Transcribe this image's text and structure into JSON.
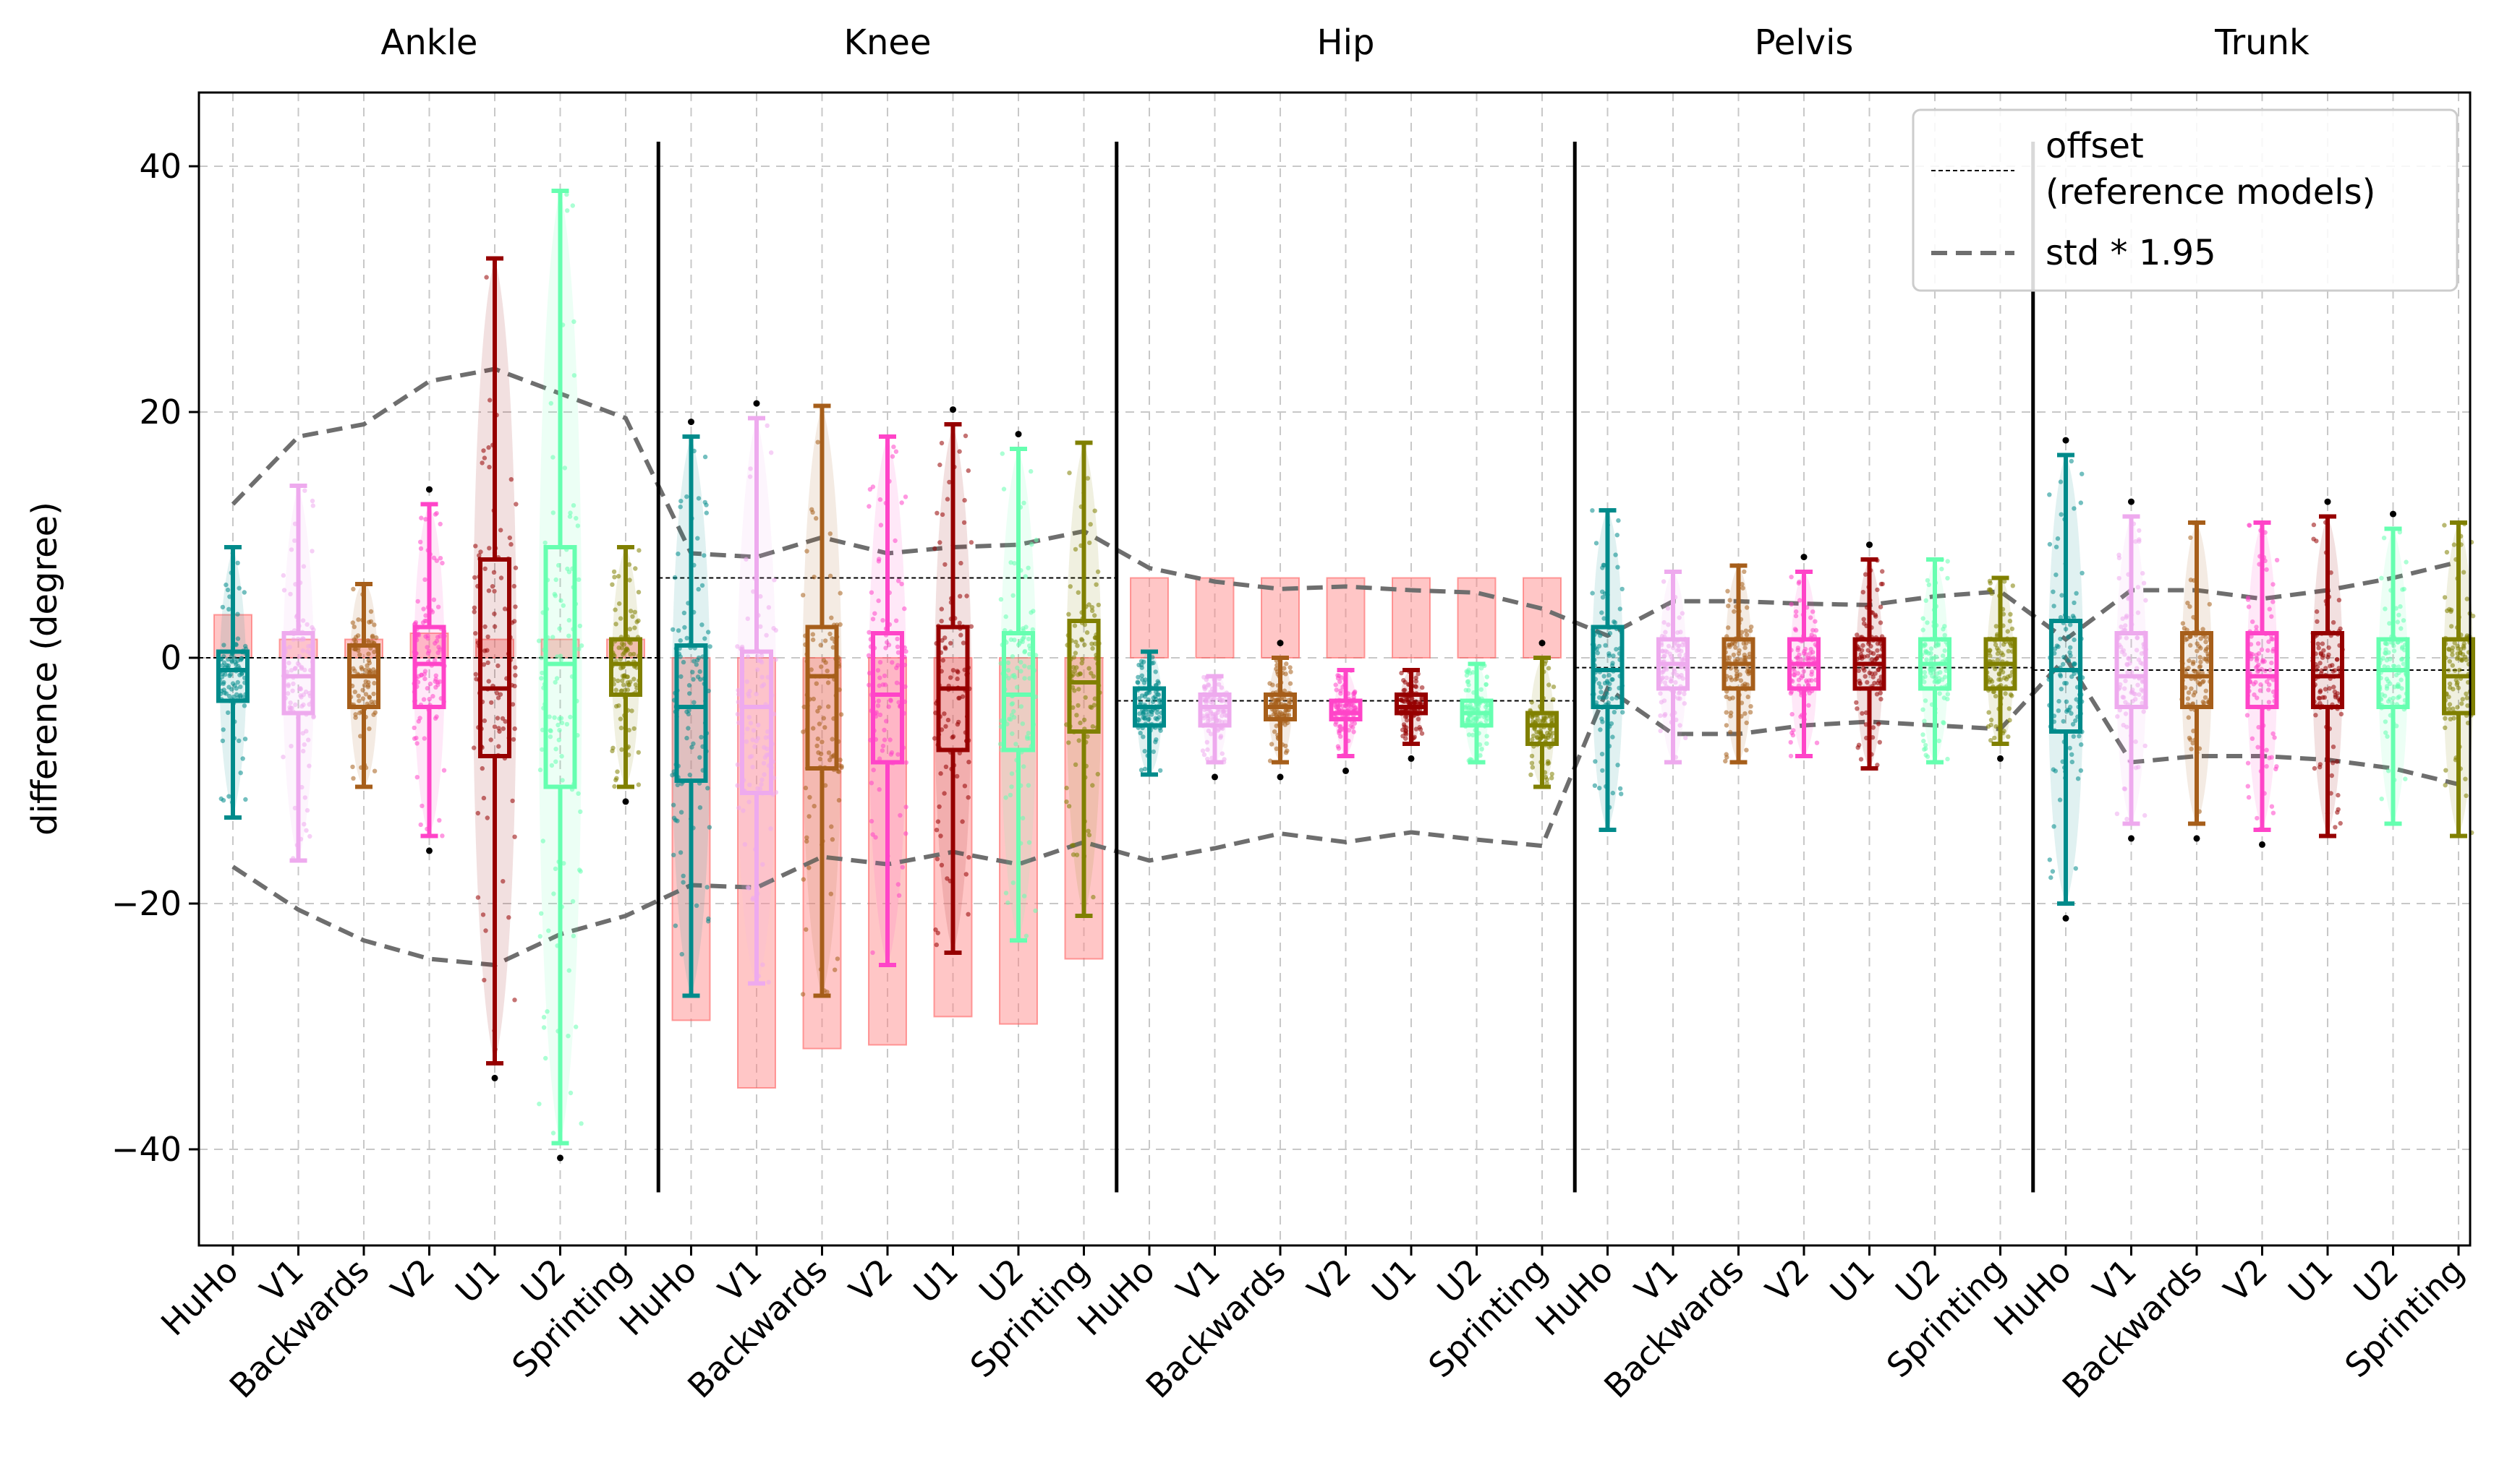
{
  "chart_data": {
    "type": "box",
    "ylabel": "difference (degree)",
    "ylim": [
      -47,
      46
    ],
    "yticks": [
      {
        "value": 40,
        "label": "40"
      },
      {
        "value": 20,
        "label": "20"
      },
      {
        "value": 0,
        "label": "0"
      },
      {
        "value": -20,
        "label": "−20"
      },
      {
        "value": -40,
        "label": "−40"
      }
    ],
    "grid": true,
    "legend": {
      "position": "top-right",
      "entries": [
        {
          "label": "offset",
          "label2": "(reference models)",
          "style": "dotted-thin"
        },
        {
          "label": "std * 1.95",
          "style": "dashed-gray"
        }
      ]
    },
    "model_labels": [
      "HuHo",
      "V1",
      "Backwards",
      "V2",
      "U1",
      "U2",
      "Sprinting"
    ],
    "colors": [
      "#008b8b",
      "#eeaaee",
      "#a65e1a",
      "#ff44c8",
      "#960000",
      "#66ffb0",
      "#808000"
    ],
    "groups": [
      {
        "name": "Ankle",
        "offset": 0,
        "std_upper": [
          12.5,
          18,
          19,
          22.5,
          23.5,
          21.5,
          19.5
        ],
        "std_lower": [
          -17,
          -20.5,
          -23,
          -24.5,
          -25,
          -22.5,
          -21
        ],
        "boxes": [
          {
            "whisker_low": -13,
            "q1": -3.5,
            "median": -1,
            "q3": 0.5,
            "whisker_high": 9,
            "offset_bar": [
              0,
              3.5
            ]
          },
          {
            "whisker_low": -16.5,
            "q1": -4.5,
            "median": -1.5,
            "q3": 2,
            "whisker_high": 14,
            "offset_bar": [
              0,
              1.5
            ]
          },
          {
            "whisker_low": -10.5,
            "q1": -4,
            "median": -1.5,
            "q3": 1,
            "whisker_high": 6,
            "offset_bar": [
              0,
              1.5
            ]
          },
          {
            "whisker_low": -14.5,
            "q1": -4,
            "median": -0.5,
            "q3": 2.5,
            "whisker_high": 12.5,
            "offset_bar": [
              0,
              2
            ]
          },
          {
            "whisker_low": -33,
            "q1": -8,
            "median": -2.5,
            "q3": 8,
            "whisker_high": 32.5,
            "offset_bar": [
              0,
              1.5
            ]
          },
          {
            "whisker_low": -39.5,
            "q1": -10.5,
            "median": -0.5,
            "q3": 9,
            "whisker_high": 38,
            "offset_bar": [
              0,
              1.5
            ]
          },
          {
            "whisker_low": -10.5,
            "q1": -3,
            "median": -0.5,
            "q3": 1.5,
            "whisker_high": 9,
            "offset_bar": [
              0,
              1.5
            ]
          }
        ]
      },
      {
        "name": "Knee",
        "offset": 6.5,
        "std_upper": [
          8.5,
          8.2,
          9.8,
          8.5,
          9,
          9.2,
          10.3
        ],
        "std_lower": [
          -18.5,
          -18.7,
          -16.2,
          -16.8,
          -15.8,
          -16.8,
          -15
        ],
        "boxes": [
          {
            "whisker_low": -27.5,
            "q1": -10,
            "median": -4,
            "q3": 1,
            "whisker_high": 18,
            "offset_bar": [
              -29.5,
              0
            ]
          },
          {
            "whisker_low": -26.5,
            "q1": -11,
            "median": -4,
            "q3": 0.5,
            "whisker_high": 19.5,
            "offset_bar": [
              -35,
              0
            ]
          },
          {
            "whisker_low": -27.5,
            "q1": -9,
            "median": -1.5,
            "q3": 2.5,
            "whisker_high": 20.5,
            "offset_bar": [
              -31.8,
              0
            ]
          },
          {
            "whisker_low": -25,
            "q1": -8.5,
            "median": -3,
            "q3": 2,
            "whisker_high": 18,
            "offset_bar": [
              -31.5,
              0
            ]
          },
          {
            "whisker_low": -24,
            "q1": -7.5,
            "median": -2.5,
            "q3": 2.5,
            "whisker_high": 19,
            "offset_bar": [
              -29.2,
              0
            ]
          },
          {
            "whisker_low": -23,
            "q1": -7.5,
            "median": -3,
            "q3": 2,
            "whisker_high": 17,
            "offset_bar": [
              -29.8,
              0
            ]
          },
          {
            "whisker_low": -21,
            "q1": -6,
            "median": -2,
            "q3": 3,
            "whisker_high": 17.5,
            "offset_bar": [
              -24.5,
              0
            ]
          }
        ]
      },
      {
        "name": "Hip",
        "offset": -3.5,
        "std_upper": [
          7.3,
          6.2,
          5.6,
          5.8,
          5.5,
          5.3,
          4
        ],
        "std_lower": [
          -16.5,
          -15.5,
          -14.3,
          -15,
          -14.2,
          -14.8,
          -15.3
        ],
        "boxes": [
          {
            "whisker_low": -9.5,
            "q1": -5.5,
            "median": -4,
            "q3": -2.5,
            "whisker_high": 0.5,
            "offset_bar": [
              0,
              6.5
            ]
          },
          {
            "whisker_low": -8.5,
            "q1": -5.5,
            "median": -4,
            "q3": -3,
            "whisker_high": -1.5,
            "offset_bar": [
              0,
              6.5
            ]
          },
          {
            "whisker_low": -8.5,
            "q1": -5,
            "median": -4,
            "q3": -3,
            "whisker_high": 0,
            "offset_bar": [
              0,
              6.5
            ]
          },
          {
            "whisker_low": -8,
            "q1": -5,
            "median": -4.5,
            "q3": -3.5,
            "whisker_high": -1,
            "offset_bar": [
              0,
              6.5
            ]
          },
          {
            "whisker_low": -7,
            "q1": -4.5,
            "median": -4,
            "q3": -3,
            "whisker_high": -1,
            "offset_bar": [
              0,
              6.5
            ]
          },
          {
            "whisker_low": -8.5,
            "q1": -5.5,
            "median": -4.5,
            "q3": -3.5,
            "whisker_high": -0.5,
            "offset_bar": [
              0,
              6.5
            ]
          },
          {
            "whisker_low": -10.5,
            "q1": -7,
            "median": -5.5,
            "q3": -4.5,
            "whisker_high": 0,
            "offset_bar": [
              0,
              6.5
            ]
          }
        ]
      },
      {
        "name": "Pelvis",
        "offset": -0.8,
        "std_upper": [
          1.8,
          4.6,
          4.6,
          4.4,
          4.3,
          5,
          5.4
        ],
        "std_lower": [
          -2.5,
          -6.2,
          -6.2,
          -5.5,
          -5.2,
          -5.5,
          -5.8
        ],
        "boxes": [
          {
            "whisker_low": -14,
            "q1": -4,
            "median": -1,
            "q3": 2.5,
            "whisker_high": 12,
            "offset_bar": [
              0,
              0
            ]
          },
          {
            "whisker_low": -8.5,
            "q1": -2.5,
            "median": -0.5,
            "q3": 1.5,
            "whisker_high": 7,
            "offset_bar": [
              0,
              0
            ]
          },
          {
            "whisker_low": -8.5,
            "q1": -2.5,
            "median": -0.5,
            "q3": 1.5,
            "whisker_high": 7.5,
            "offset_bar": [
              0,
              0
            ]
          },
          {
            "whisker_low": -8,
            "q1": -2.5,
            "median": -0.5,
            "q3": 1.5,
            "whisker_high": 7,
            "offset_bar": [
              0,
              0
            ]
          },
          {
            "whisker_low": -9,
            "q1": -2.5,
            "median": -0.5,
            "q3": 1.5,
            "whisker_high": 8,
            "offset_bar": [
              0,
              0
            ]
          },
          {
            "whisker_low": -8.5,
            "q1": -2.5,
            "median": -0.5,
            "q3": 1.5,
            "whisker_high": 8,
            "offset_bar": [
              0,
              0
            ]
          },
          {
            "whisker_low": -7,
            "q1": -2.5,
            "median": -0.5,
            "q3": 1.5,
            "whisker_high": 6.5,
            "offset_bar": [
              0,
              0
            ]
          }
        ]
      },
      {
        "name": "Trunk",
        "offset": -1,
        "std_upper": [
          1.5,
          5.5,
          5.5,
          4.8,
          5.5,
          6.5,
          7.8
        ],
        "std_lower": [
          0,
          -8.5,
          -8,
          -8,
          -8.3,
          -9,
          -10.3
        ],
        "boxes": [
          {
            "whisker_low": -20,
            "q1": -6,
            "median": -1,
            "q3": 3,
            "whisker_high": 16.5,
            "offset_bar": [
              0,
              0
            ]
          },
          {
            "whisker_low": -13.5,
            "q1": -4,
            "median": -1.5,
            "q3": 2,
            "whisker_high": 11.5,
            "offset_bar": [
              0,
              0
            ]
          },
          {
            "whisker_low": -13.5,
            "q1": -4,
            "median": -1.5,
            "q3": 2,
            "whisker_high": 11,
            "offset_bar": [
              0,
              0
            ]
          },
          {
            "whisker_low": -14,
            "q1": -4,
            "median": -1.5,
            "q3": 2,
            "whisker_high": 11,
            "offset_bar": [
              0,
              0
            ]
          },
          {
            "whisker_low": -14.5,
            "q1": -4,
            "median": -1.5,
            "q3": 2,
            "whisker_high": 11.5,
            "offset_bar": [
              0,
              0
            ]
          },
          {
            "whisker_low": -13.5,
            "q1": -4,
            "median": -1,
            "q3": 1.5,
            "whisker_high": 10.5,
            "offset_bar": [
              0,
              0
            ]
          },
          {
            "whisker_low": -14.5,
            "q1": -4.5,
            "median": -1.5,
            "q3": 1.5,
            "whisker_high": 11,
            "offset_bar": [
              0,
              0
            ]
          }
        ]
      }
    ]
  }
}
